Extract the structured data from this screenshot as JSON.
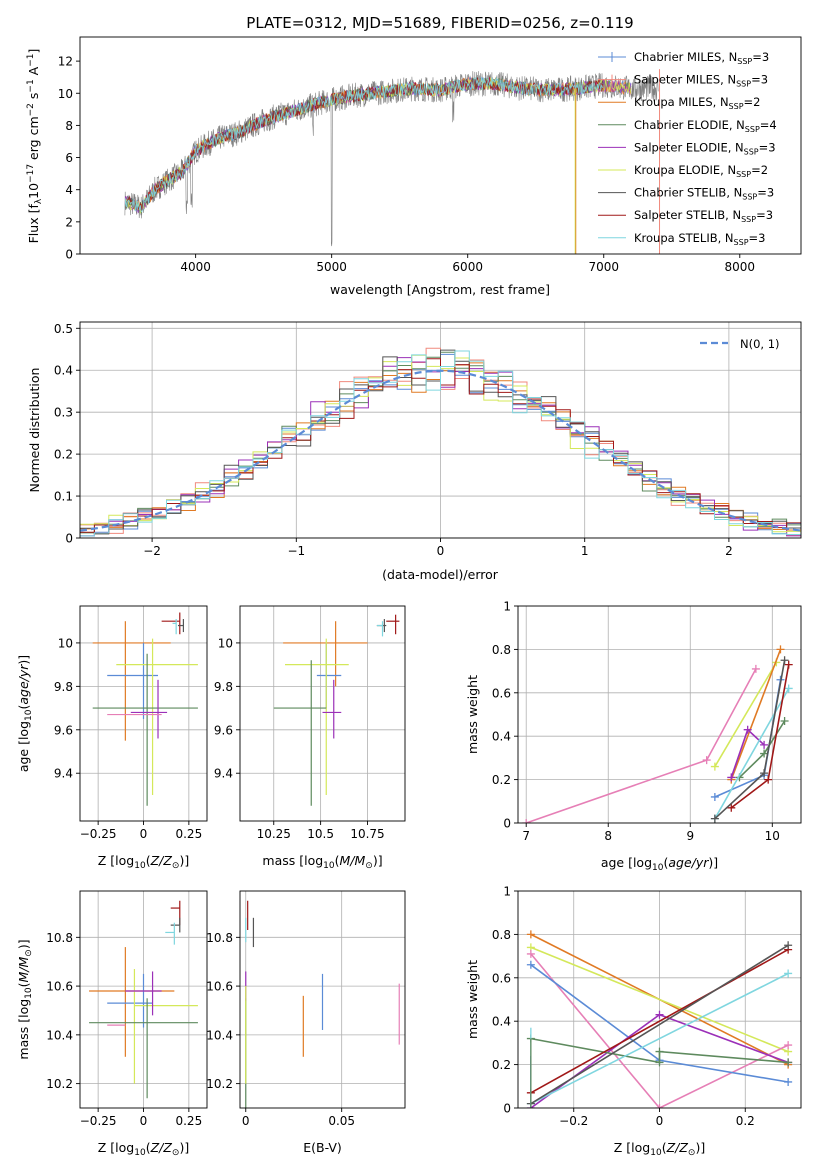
{
  "colors": {
    "Chabrier MILES": "#5b8bd6",
    "Salpeter MILES": "#f08a7e",
    "Kroupa MILES": "#e07a24",
    "Chabrier ELODIE": "#5e8a5e",
    "Salpeter ELODIE": "#9b30b8",
    "Kroupa ELODIE": "#d4e85a",
    "Chabrier STELIB": "#555555",
    "Salpeter STELIB": "#a01818",
    "Kroupa STELIB": "#7fd6df",
    "spectrum": "#7f7f7f",
    "gaussian": "#5b8bd6",
    "pink": "#e67fb6"
  },
  "chart_data": [
    {
      "id": "spectrum",
      "type": "line",
      "title": "PLATE=0312, MJD=51689, FIBERID=0256, z=0.119",
      "xlabel": "wavelength [Angstrom, rest frame]",
      "ylabel": "Flux [f",
      "xlim": [
        3150,
        8450
      ],
      "ylim": [
        0,
        13.5
      ],
      "xticks": [
        4000,
        5000,
        6000,
        7000,
        8000
      ],
      "yticks": [
        0,
        2,
        4,
        6,
        8,
        10,
        12
      ],
      "grid": false,
      "legend_position": "top-right",
      "continuum_x": [
        3500,
        3600,
        3700,
        3800,
        3900,
        4000,
        4100,
        4200,
        4300,
        4400,
        4500,
        4600,
        4800,
        5000,
        5200,
        5400,
        5600,
        5800,
        6000,
        6200,
        6400,
        6600,
        6800,
        7000,
        7200
      ],
      "continuum_y": [
        3.2,
        2.9,
        4.0,
        4.6,
        5.1,
        6.4,
        6.9,
        7.3,
        7.5,
        7.9,
        8.3,
        8.6,
        9.1,
        9.6,
        9.9,
        10.1,
        10.3,
        10.2,
        10.6,
        10.6,
        10.3,
        10.2,
        10.3,
        10.5,
        10.3
      ],
      "legend": [
        {
          "label": "Chabrier MILES, N",
          "nssp": "3"
        },
        {
          "label": "Salpeter MILES, N",
          "nssp": "3"
        },
        {
          "label": "Kroupa MILES, N",
          "nssp": "2"
        },
        {
          "label": "Chabrier ELODIE, N",
          "nssp": "4"
        },
        {
          "label": "Salpeter ELODIE, N",
          "nssp": "3"
        },
        {
          "label": "Kroupa ELODIE, N",
          "nssp": "2"
        },
        {
          "label": "Chabrier STELIB, N",
          "nssp": "3"
        },
        {
          "label": "Salpeter STELIB, N",
          "nssp": "3"
        },
        {
          "label": "Kroupa STELIB, N",
          "nssp": "3"
        }
      ],
      "legend_sub": "SSP"
    },
    {
      "id": "residuals",
      "type": "line",
      "xlabel": "(data-model)/error",
      "ylabel": "Normed distribution",
      "xlim": [
        -2.5,
        2.5
      ],
      "ylim": [
        0,
        0.515
      ],
      "xticks": [
        -2,
        -1,
        0,
        1,
        2
      ],
      "yticks": [
        0.0,
        0.1,
        0.2,
        0.3,
        0.4,
        0.5
      ],
      "grid": true,
      "legend_position": "top-right",
      "gaussian_label": "N(0, 1)",
      "bin_width": 0.1
    },
    {
      "id": "z-age",
      "type": "scatter",
      "xlabel": "Z [log",
      "ylabel": "age  [log",
      "xlim": [
        -0.35,
        0.35
      ],
      "ylim": [
        9.18,
        10.17
      ],
      "xticks": [
        -0.25,
        0.0,
        0.25
      ],
      "yticks": [
        9.4,
        9.6,
        9.8,
        10.0
      ],
      "grid": true,
      "points": [
        {
          "model": "Kroupa MILES",
          "x": -0.1,
          "xerr": [
            0.18,
            0.25
          ],
          "y": 10.0,
          "yerr": [
            0.45,
            0.1
          ]
        },
        {
          "model": "Chabrier MILES",
          "x": 0.0,
          "xerr": [
            0.2,
            0.08
          ],
          "y": 9.85,
          "yerr": [
            0.2,
            0.15
          ]
        },
        {
          "model": "Kroupa ELODIE",
          "x": 0.05,
          "xerr": [
            0.2,
            0.25
          ],
          "y": 9.9,
          "yerr": [
            0.6,
            0.12
          ]
        },
        {
          "model": "Chabrier ELODIE",
          "x": 0.02,
          "xerr": [
            0.3,
            0.28
          ],
          "y": 9.7,
          "yerr": [
            0.45,
            0.25
          ]
        },
        {
          "model": "Salpeter ELODIE",
          "x": 0.08,
          "xerr": [
            0.15,
            0.05
          ],
          "y": 9.68,
          "yerr": [
            0.12,
            0.15
          ]
        },
        {
          "model": "Salpeter STELIB",
          "x": 0.2,
          "xerr": [
            0.1,
            0.0
          ],
          "y": 10.1,
          "yerr": [
            0.06,
            0.04
          ]
        },
        {
          "model": "Chabrier STELIB",
          "x": 0.22,
          "xerr": [
            0.03,
            0.0
          ],
          "y": 10.08,
          "yerr": [
            0.03,
            0.03
          ]
        },
        {
          "model": "Kroupa STELIB",
          "x": 0.18,
          "xerr": [
            0.02,
            0.0
          ],
          "y": 10.09,
          "yerr": [
            0.05,
            0.02
          ]
        },
        {
          "model": "Pink",
          "x": -0.2,
          "xerr": [
            0.0,
            0.3
          ],
          "y": 9.67,
          "yerr": [
            0.0,
            0.0
          ]
        }
      ]
    },
    {
      "id": "mass-age",
      "type": "scatter",
      "xlabel": "mass [log",
      "ylabel": "",
      "xlim": [
        10.07,
        10.95
      ],
      "ylim": [
        9.18,
        10.17
      ],
      "xticks": [
        10.25,
        10.5,
        10.75
      ],
      "yticks": [
        9.4,
        9.6,
        9.8,
        10.0
      ],
      "grid": true,
      "points": [
        {
          "model": "Kroupa MILES",
          "x": 10.58,
          "xerr": [
            0.28,
            0.17
          ],
          "y": 10.0,
          "yerr": [
            0.2,
            0.1
          ]
        },
        {
          "model": "Chabrier MILES",
          "x": 10.53,
          "xerr": [
            0.05,
            0.08
          ],
          "y": 9.85,
          "yerr": [
            0.15,
            0.15
          ]
        },
        {
          "model": "Kroupa ELODIE",
          "x": 10.53,
          "xerr": [
            0.22,
            0.12
          ],
          "y": 9.9,
          "yerr": [
            0.6,
            0.12
          ]
        },
        {
          "model": "Chabrier ELODIE",
          "x": 10.45,
          "xerr": [
            0.2,
            0.08
          ],
          "y": 9.7,
          "yerr": [
            0.45,
            0.22
          ]
        },
        {
          "model": "Salpeter ELODIE",
          "x": 10.57,
          "xerr": [
            0.06,
            0.04
          ],
          "y": 9.68,
          "yerr": [
            0.12,
            0.15
          ]
        },
        {
          "model": "Salpeter STELIB",
          "x": 10.9,
          "xerr": [
            0.05,
            0.02
          ],
          "y": 10.1,
          "yerr": [
            0.06,
            0.03
          ]
        },
        {
          "model": "Chabrier STELIB",
          "x": 10.84,
          "xerr": [
            0.04,
            0.01
          ],
          "y": 10.08,
          "yerr": [
            0.03,
            0.03
          ]
        },
        {
          "model": "Kroupa STELIB",
          "x": 10.83,
          "xerr": [
            0.03,
            0.0
          ],
          "y": 10.08,
          "yerr": [
            0.05,
            0.02
          ]
        }
      ]
    },
    {
      "id": "age-weight",
      "type": "line",
      "xlabel": "age  [log",
      "ylabel": "mass weight",
      "xlim": [
        6.9,
        10.35
      ],
      "ylim": [
        0,
        1.0
      ],
      "xticks": [
        7,
        8,
        9,
        10
      ],
      "yticks": [
        0.0,
        0.2,
        0.4,
        0.6,
        0.8,
        1.0
      ],
      "grid": true,
      "series": [
        {
          "model": "Pink",
          "x": [
            7.0,
            9.2,
            9.8
          ],
          "y": [
            0.0,
            0.29,
            0.71
          ]
        },
        {
          "model": "Kroupa ELODIE",
          "x": [
            9.3,
            10.05
          ],
          "y": [
            0.26,
            0.74
          ]
        },
        {
          "model": "Kroupa MILES",
          "x": [
            9.5,
            10.1
          ],
          "y": [
            0.2,
            0.8
          ]
        },
        {
          "model": "Chabrier MILES",
          "x": [
            9.3,
            9.9,
            10.1
          ],
          "y": [
            0.12,
            0.22,
            0.66
          ]
        },
        {
          "model": "Salpeter ELODIE",
          "x": [
            9.5,
            9.7,
            9.9
          ],
          "y": [
            0.21,
            0.43,
            0.36
          ]
        },
        {
          "model": "Chabrier ELODIE",
          "x": [
            9.6,
            9.9,
            10.15
          ],
          "y": [
            0.21,
            0.32,
            0.47
          ]
        },
        {
          "model": "Kroupa STELIB",
          "x": [
            9.3,
            10.2
          ],
          "y": [
            0.02,
            0.62
          ]
        },
        {
          "model": "Salpeter STELIB",
          "x": [
            9.5,
            9.95,
            10.2
          ],
          "y": [
            0.07,
            0.2,
            0.73
          ]
        },
        {
          "model": "Chabrier STELIB",
          "x": [
            9.3,
            9.9,
            10.15
          ],
          "y": [
            0.02,
            0.23,
            0.75
          ]
        }
      ]
    },
    {
      "id": "z-mass",
      "type": "scatter",
      "xlabel": "Z [log",
      "ylabel": "mass [log",
      "xlim": [
        -0.35,
        0.35
      ],
      "ylim": [
        10.1,
        10.99
      ],
      "xticks": [
        -0.25,
        0.0,
        0.25
      ],
      "yticks": [
        10.2,
        10.4,
        10.6,
        10.8
      ],
      "grid": true,
      "points": [
        {
          "model": "Kroupa MILES",
          "x": -0.1,
          "xerr": [
            0.2,
            0.27
          ],
          "y": 10.58,
          "yerr": [
            0.27,
            0.18
          ]
        },
        {
          "model": "Chabrier MILES",
          "x": 0.0,
          "xerr": [
            0.2,
            0.05
          ],
          "y": 10.53,
          "yerr": [
            0.1,
            0.12
          ]
        },
        {
          "model": "Kroupa ELODIE",
          "x": -0.05,
          "xerr": [
            0.0,
            0.35
          ],
          "y": 10.52,
          "yerr": [
            0.32,
            0.15
          ]
        },
        {
          "model": "Chabrier ELODIE",
          "x": 0.02,
          "xerr": [
            0.32,
            0.28
          ],
          "y": 10.45,
          "yerr": [
            0.31,
            0.1
          ]
        },
        {
          "model": "Salpeter ELODIE",
          "x": 0.05,
          "xerr": [
            0.15,
            0.05
          ],
          "y": 10.58,
          "yerr": [
            0.1,
            0.08
          ]
        },
        {
          "model": "Salpeter STELIB",
          "x": 0.2,
          "xerr": [
            0.05,
            0.0
          ],
          "y": 10.92,
          "yerr": [
            0.07,
            0.03
          ]
        },
        {
          "model": "Chabrier STELIB",
          "x": 0.2,
          "xerr": [
            0.05,
            0.0
          ],
          "y": 10.85,
          "yerr": [
            0.03,
            0.03
          ]
        },
        {
          "model": "Kroupa STELIB",
          "x": 0.17,
          "xerr": [
            0.05,
            0.0
          ],
          "y": 10.82,
          "yerr": [
            0.05,
            0.04
          ]
        },
        {
          "model": "Pink",
          "x": -0.1,
          "xerr": [
            0.1,
            0.0
          ],
          "y": 10.44,
          "yerr": [
            0.0,
            0.0
          ]
        }
      ]
    },
    {
      "id": "ebv-mass",
      "type": "scatter",
      "xlabel": "E(B-V)",
      "ylabel": "",
      "xlim": [
        -0.003,
        0.083
      ],
      "ylim": [
        10.1,
        10.99
      ],
      "xticks": [
        0.0,
        0.05
      ],
      "yticks": [
        10.2,
        10.4,
        10.6,
        10.8
      ],
      "grid": true,
      "points": [
        {
          "model": "Kroupa MILES",
          "x": 0.03,
          "y": 10.44,
          "yerr": [
            0.13,
            0.12
          ]
        },
        {
          "model": "Chabrier MILES",
          "x": 0.04,
          "y": 10.54,
          "yerr": [
            0.12,
            0.11
          ]
        },
        {
          "model": "Pink",
          "x": 0.08,
          "y": 10.48,
          "yerr": [
            0.12,
            0.13
          ]
        },
        {
          "model": "Chabrier ELODIE",
          "x": 0.0,
          "y": 10.35,
          "yerr": [
            0.25,
            0.2
          ]
        },
        {
          "model": "Salpeter ELODIE",
          "x": 0.0,
          "y": 10.6,
          "yerr": [
            0.06,
            0.06
          ]
        },
        {
          "model": "Kroupa ELODIE",
          "x": 0.0,
          "y": 10.4,
          "yerr": [
            0.2,
            0.2
          ]
        },
        {
          "model": "Chabrier STELIB",
          "x": 0.004,
          "y": 10.82,
          "yerr": [
            0.06,
            0.06
          ]
        },
        {
          "model": "Salpeter STELIB",
          "x": 0.001,
          "y": 10.9,
          "yerr": [
            0.07,
            0.05
          ]
        },
        {
          "model": "Kroupa STELIB",
          "x": 0.0,
          "y": 10.83,
          "yerr": [
            0.05,
            0.05
          ]
        }
      ]
    },
    {
      "id": "z-weight",
      "type": "line",
      "xlabel": "Z [log",
      "ylabel": "mass weight",
      "xlim": [
        -0.33,
        0.33
      ],
      "ylim": [
        0,
        1.0
      ],
      "xticks": [
        -0.2,
        0.0,
        0.2
      ],
      "yticks": [
        0.0,
        0.2,
        0.4,
        0.6,
        0.8,
        1.0
      ],
      "grid": true,
      "series": [
        {
          "model": "Kroupa MILES",
          "x": [
            -0.3,
            0.3
          ],
          "y": [
            0.8,
            0.2
          ]
        },
        {
          "model": "Kroupa ELODIE",
          "x": [
            -0.3,
            0.3
          ],
          "y": [
            0.74,
            0.26
          ]
        },
        {
          "model": "Pink",
          "x": [
            -0.3,
            0.0,
            0.3
          ],
          "y": [
            0.71,
            0.0,
            0.29
          ]
        },
        {
          "model": "Chabrier MILES",
          "x": [
            -0.3,
            0.0,
            0.3
          ],
          "y": [
            0.66,
            0.22,
            0.12
          ]
        },
        {
          "model": "Salpeter ELODIE",
          "x": [
            -0.3,
            0.0,
            0.3
          ],
          "y": [
            0.0,
            0.43,
            0.21
          ]
        },
        {
          "model": "Chabrier ELODIE",
          "x": [
            -0.3,
            0.0,
            0.0,
            0.3
          ],
          "y": [
            0.32,
            0.21,
            0.26,
            0.21
          ]
        },
        {
          "model": "Kroupa STELIB",
          "x": [
            -0.3,
            0.3
          ],
          "y": [
            0.02,
            0.62
          ]
        },
        {
          "model": "Salpeter STELIB",
          "x": [
            -0.3,
            0.3
          ],
          "y": [
            0.07,
            0.73
          ]
        },
        {
          "model": "Chabrier STELIB",
          "x": [
            -0.3,
            0.3
          ],
          "y": [
            0.02,
            0.75
          ]
        }
      ],
      "vertical_markers": [
        {
          "model": "Kroupa STELIB",
          "x": -0.3,
          "y": [
            0.0,
            0.37
          ]
        },
        {
          "model": "Chabrier MILES",
          "x": -0.3,
          "y": [
            0.0,
            0.24
          ]
        },
        {
          "model": "Chabrier ELODIE",
          "x": -0.3,
          "y": [
            0.0,
            0.32
          ]
        }
      ]
    }
  ],
  "text": {
    "flux_unit_tail": "10",
    "residuals_axis_tick_fmt": "1"
  }
}
